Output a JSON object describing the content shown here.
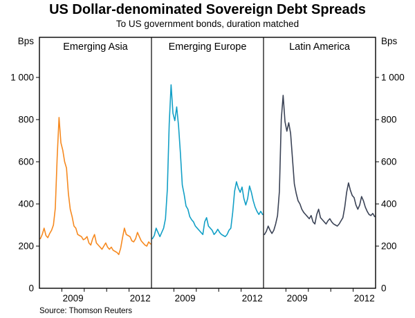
{
  "header": {
    "title": "US Dollar-denominated Sovereign Debt Spreads",
    "subtitle": "To US government bonds, duration matched"
  },
  "footer": {
    "source": "Source: Thomson Reuters"
  },
  "chart_data": {
    "type": "line",
    "title": "US Dollar-denominated Sovereign Debt Spreads",
    "subtitle": "To US government bonds, duration matched",
    "unit_label": "Bps",
    "ylim": [
      0,
      1000
    ],
    "yticks": [
      0,
      200,
      400,
      600,
      800,
      1000
    ],
    "ytick_labels": [
      "0",
      "200",
      "400",
      "600",
      "800",
      "1 000"
    ],
    "x_start_year": 2008,
    "x_end_year": 2013,
    "xtick_labels": [
      "2009",
      "2012"
    ],
    "xtick_label_positions": [
      2009.5,
      2012.5
    ],
    "x_axis_tick_years": [
      2009,
      2010,
      2011,
      2012
    ],
    "grid": false,
    "legend_position": "panel-titles",
    "frame_color": "#000000",
    "panels": [
      {
        "title": "Emerging Asia",
        "color": "#F6891F",
        "values": [
          235,
          255,
          285,
          250,
          240,
          260,
          275,
          300,
          380,
          620,
          810,
          690,
          655,
          600,
          570,
          450,
          375,
          340,
          295,
          285,
          255,
          250,
          245,
          230,
          235,
          245,
          215,
          205,
          235,
          255,
          215,
          205,
          195,
          185,
          200,
          215,
          195,
          185,
          195,
          180,
          175,
          170,
          160,
          190,
          240,
          285,
          255,
          250,
          245,
          225,
          220,
          235,
          265,
          245,
          225,
          215,
          205,
          200,
          220,
          210
        ]
      },
      {
        "title": "Emerging Europe",
        "color": "#119FC6",
        "values": [
          235,
          250,
          285,
          265,
          245,
          265,
          285,
          330,
          470,
          780,
          965,
          830,
          795,
          860,
          770,
          640,
          490,
          445,
          390,
          375,
          340,
          325,
          315,
          295,
          285,
          275,
          265,
          255,
          315,
          335,
          295,
          285,
          275,
          255,
          265,
          280,
          265,
          255,
          250,
          245,
          255,
          275,
          285,
          360,
          460,
          505,
          475,
          455,
          480,
          425,
          395,
          425,
          485,
          455,
          415,
          385,
          365,
          350,
          365,
          350
        ]
      },
      {
        "title": "Latin America",
        "color": "#3A4255",
        "values": [
          255,
          270,
          295,
          275,
          260,
          275,
          305,
          345,
          460,
          800,
          915,
          790,
          745,
          785,
          735,
          615,
          495,
          450,
          415,
          400,
          375,
          360,
          350,
          340,
          330,
          345,
          315,
          305,
          350,
          375,
          335,
          325,
          315,
          305,
          320,
          330,
          315,
          305,
          300,
          295,
          305,
          320,
          335,
          385,
          455,
          500,
          465,
          440,
          430,
          395,
          375,
          395,
          435,
          415,
          385,
          365,
          350,
          345,
          355,
          340
        ]
      }
    ],
    "source": "Source: Thomson Reuters"
  }
}
